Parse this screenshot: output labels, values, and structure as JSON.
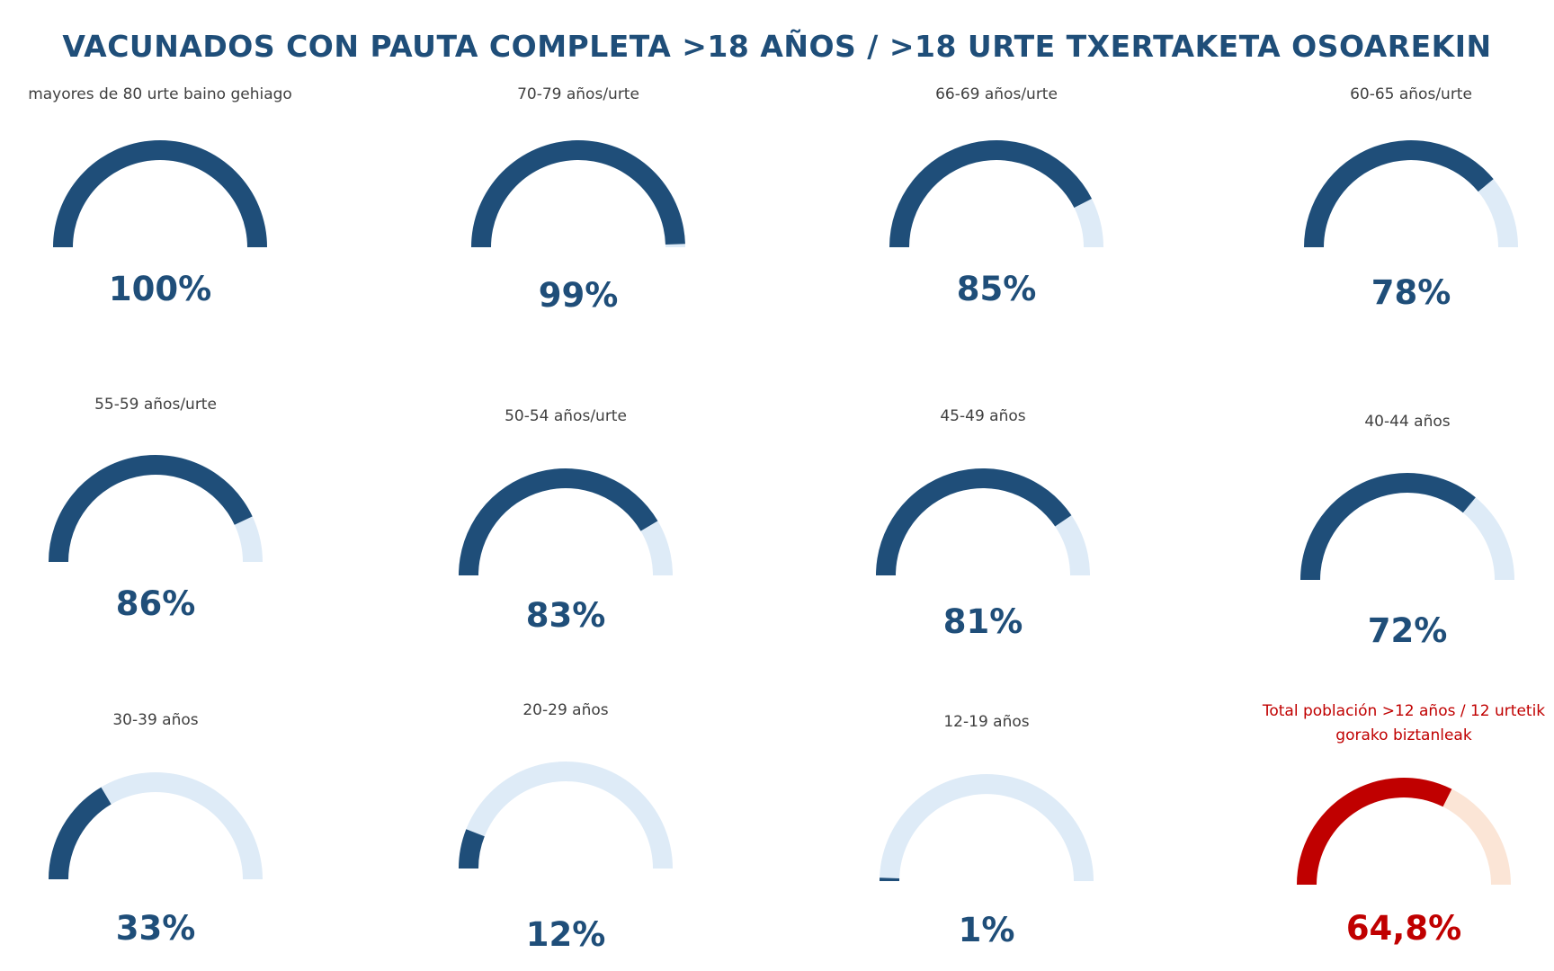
{
  "title": "VACUNADOS CON PAUTA COMPLETA >18 AÑOS / >18 URTE TXERTAKETA OSOAREKIN",
  "colors": {
    "fill": "#1f4e79",
    "track": "#deebf7",
    "total_fill": "#c00000",
    "total_track": "#fbe5d6"
  },
  "chart_data": {
    "type": "gauge",
    "title": "VACUNADOS CON PAUTA COMPLETA >18 AÑOS / >18 URTE TXERTAKETA OSOAREKIN",
    "gauges": [
      {
        "label": [
          "mayores de 80 urte baino gehiago"
        ],
        "value": 100,
        "display": "100%"
      },
      {
        "label": [
          "70-79 años/urte"
        ],
        "value": 99,
        "display": "99%"
      },
      {
        "label": [
          "66-69 años/urte"
        ],
        "value": 85,
        "display": "85%"
      },
      {
        "label": [
          "60-65 años/urte"
        ],
        "value": 78,
        "display": "78%"
      },
      {
        "label": [
          "55-59 años/urte"
        ],
        "value": 86,
        "display": "86%"
      },
      {
        "label": [
          "50-54 años/urte"
        ],
        "value": 83,
        "display": "83%"
      },
      {
        "label": [
          "45-49 años"
        ],
        "value": 81,
        "display": "81%"
      },
      {
        "label": [
          "40-44 años"
        ],
        "value": 72,
        "display": "72%"
      },
      {
        "label": [
          "30-39 años"
        ],
        "value": 33,
        "display": "33%"
      },
      {
        "label": [
          "20-29 años"
        ],
        "value": 12,
        "display": "12%"
      },
      {
        "label": [
          "12-19 años"
        ],
        "value": 1,
        "display": "1%"
      },
      {
        "label": [
          "Total población >12 años / 12 urtetik",
          "gorako biztanleak"
        ],
        "value": 64.8,
        "display": "64,8%",
        "highlight": true
      }
    ]
  }
}
